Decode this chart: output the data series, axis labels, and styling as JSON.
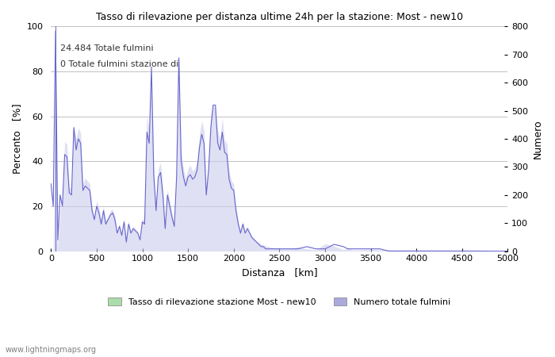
{
  "title": "Tasso di rilevazione per distanza ultime 24h per la stazione: Most - new10",
  "xlabel": "Distanza   [km]",
  "ylabel_left": "Percento   [%]",
  "ylabel_right": "Numero",
  "annotation_line1": "24.484 Totale fulmini",
  "annotation_line2": "0 Totale fulmini stazione di",
  "xlim": [
    0,
    5000
  ],
  "ylim_left": [
    0,
    100
  ],
  "ylim_right": [
    0,
    800
  ],
  "xticks": [
    0,
    500,
    1000,
    1500,
    2000,
    2500,
    3000,
    3500,
    4000,
    4500,
    5000
  ],
  "yticks_left": [
    0,
    20,
    40,
    60,
    80,
    100
  ],
  "yticks_right": [
    0,
    100,
    200,
    300,
    400,
    500,
    600,
    700,
    800
  ],
  "line_color": "#6666cc",
  "fill_color": "#ccccee",
  "fill_alpha": 0.6,
  "legend_label_green": "Tasso di rilevazione stazione Most - new10",
  "legend_label_blue": "Numero totale fulmini",
  "legend_green_color": "#aaddaa",
  "legend_blue_color": "#aaaadd",
  "watermark": "www.lightningmaps.org",
  "background_color": "#ffffff",
  "grid_color": "#aaaaaa",
  "text_color": "#333333",
  "rate_x": [
    0,
    25,
    50,
    75,
    100,
    125,
    150,
    175,
    200,
    225,
    250,
    275,
    300,
    325,
    350,
    375,
    400,
    425,
    450,
    475,
    500,
    525,
    550,
    575,
    600,
    625,
    650,
    675,
    700,
    725,
    750,
    775,
    800,
    825,
    850,
    875,
    900,
    925,
    950,
    975,
    1000,
    1025,
    1050,
    1075,
    1100,
    1125,
    1150,
    1175,
    1200,
    1225,
    1250,
    1275,
    1300,
    1325,
    1350,
    1375,
    1400,
    1425,
    1450,
    1475,
    1500,
    1525,
    1550,
    1575,
    1600,
    1625,
    1650,
    1675,
    1700,
    1725,
    1750,
    1775,
    1800,
    1825,
    1850,
    1875,
    1900,
    1925,
    1950,
    1975,
    2000,
    2025,
    2050,
    2075,
    2100,
    2125,
    2150,
    2175,
    2200,
    2225,
    2250,
    2275,
    2300,
    2325,
    2350,
    2400,
    2500,
    2600,
    2700,
    2800,
    2900,
    3000,
    3100,
    3200,
    3250,
    3300,
    3400,
    3500,
    3600,
    3700,
    3800,
    3900,
    4000,
    4100,
    4200,
    4300,
    4400,
    4500,
    4600,
    4700,
    4800,
    4900,
    5000
  ],
  "rate_y": [
    30,
    20,
    98,
    5,
    25,
    20,
    43,
    42,
    26,
    25,
    55,
    45,
    50,
    48,
    27,
    29,
    28,
    27,
    18,
    14,
    20,
    17,
    12,
    18,
    12,
    14,
    16,
    17,
    14,
    8,
    11,
    7,
    13,
    4,
    12,
    8,
    10,
    9,
    8,
    5,
    13,
    12,
    53,
    48,
    82,
    34,
    18,
    33,
    35,
    25,
    10,
    25,
    20,
    15,
    11,
    33,
    86,
    40,
    33,
    29,
    33,
    34,
    32,
    33,
    36,
    46,
    52,
    48,
    25,
    36,
    55,
    65,
    65,
    48,
    45,
    53,
    44,
    43,
    32,
    28,
    27,
    18,
    12,
    8,
    12,
    8,
    10,
    8,
    6,
    5,
    4,
    3,
    2,
    2,
    1,
    1,
    1,
    1,
    1,
    2,
    1,
    1,
    3,
    2,
    1,
    1,
    1,
    1,
    1,
    0,
    0,
    0,
    0,
    0,
    0,
    0,
    0,
    0,
    0,
    0,
    0,
    0,
    0
  ],
  "count_x": [
    0,
    25,
    50,
    75,
    100,
    125,
    150,
    175,
    200,
    225,
    250,
    275,
    300,
    325,
    350,
    375,
    400,
    425,
    450,
    475,
    500,
    525,
    550,
    575,
    600,
    625,
    650,
    675,
    700,
    725,
    750,
    775,
    800,
    825,
    850,
    875,
    900,
    925,
    950,
    975,
    1000,
    1025,
    1050,
    1075,
    1100,
    1125,
    1150,
    1175,
    1200,
    1225,
    1250,
    1275,
    1300,
    1325,
    1350,
    1375,
    1400,
    1425,
    1450,
    1475,
    1500,
    1525,
    1550,
    1575,
    1600,
    1625,
    1650,
    1675,
    1700,
    1725,
    1750,
    1775,
    1800,
    1825,
    1850,
    1875,
    1900,
    1925,
    1950,
    1975,
    2000,
    2025,
    2050,
    2075,
    2100,
    2125,
    2150,
    2175,
    2200,
    2225,
    2250,
    2300,
    2400,
    2500,
    2600,
    2700,
    2800,
    2900,
    3000,
    3100,
    3200,
    3250,
    3300,
    3500,
    3600,
    3800,
    4000,
    4200,
    4500,
    4700,
    5000
  ],
  "count_y": [
    0,
    5,
    700,
    10,
    150,
    170,
    390,
    380,
    230,
    220,
    450,
    400,
    440,
    420,
    240,
    260,
    250,
    240,
    160,
    120,
    180,
    155,
    110,
    160,
    110,
    120,
    145,
    150,
    125,
    70,
    100,
    60,
    115,
    36,
    108,
    70,
    90,
    80,
    70,
    45,
    115,
    110,
    480,
    430,
    640,
    300,
    160,
    295,
    315,
    225,
    90,
    220,
    180,
    135,
    100,
    295,
    690,
    360,
    295,
    260,
    295,
    305,
    285,
    295,
    320,
    415,
    465,
    430,
    225,
    320,
    490,
    520,
    510,
    430,
    400,
    475,
    395,
    385,
    285,
    250,
    240,
    160,
    108,
    70,
    108,
    70,
    90,
    70,
    54,
    44,
    36,
    25,
    14,
    10,
    8,
    15,
    8,
    5,
    26,
    18,
    5,
    12,
    4,
    6,
    5,
    5,
    5,
    5,
    4,
    4,
    0
  ]
}
